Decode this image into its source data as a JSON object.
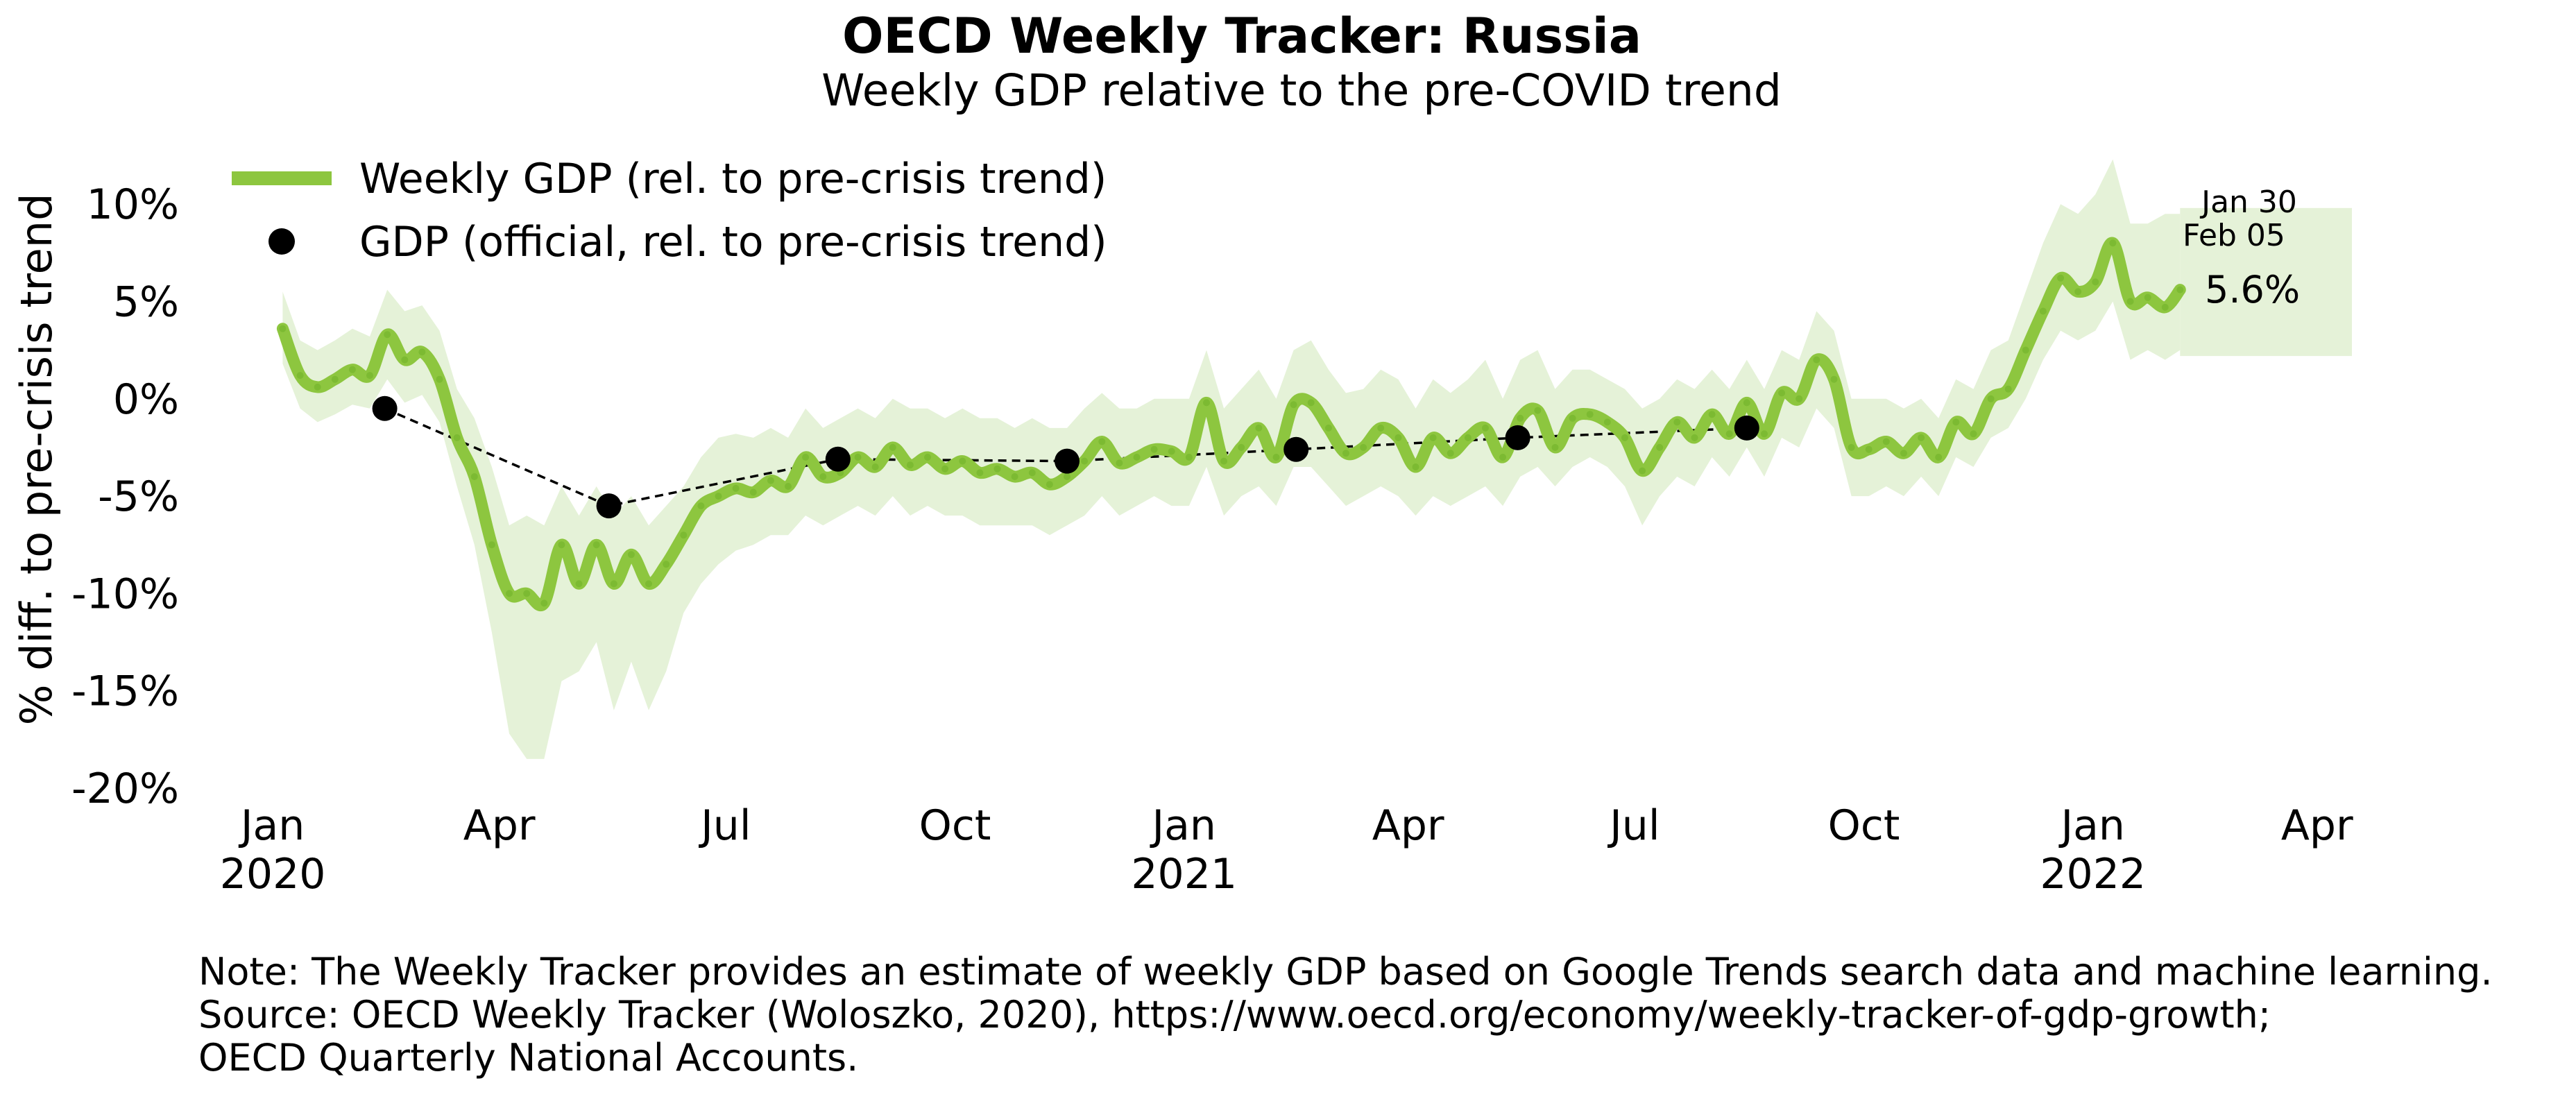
{
  "title": "OECD Weekly Tracker: Russia",
  "subtitle": "Weekly GDP relative to the pre-COVID trend",
  "notes": [
    "Note: The Weekly Tracker provides an estimate of weekly GDP based on Google Trends search data and machine learning.",
    "Source: OECD Weekly Tracker (Woloszko, 2020), https://www.oecd.org/economy/weekly-tracker-of-gdp-growth;",
    "OECD Quarterly National Accounts."
  ],
  "colors": {
    "weekly_line": "#8dc63f",
    "weekly_band": "#e5f2d8",
    "official_points": "#000000"
  },
  "chart_data": {
    "type": "line",
    "title": "OECD Weekly Tracker: Russia",
    "subtitle": "Weekly GDP relative to the pre-COVID trend",
    "ylabel": "% diff. to pre-crisis trend",
    "xlabel": "",
    "ylim": [
      -20,
      12.5
    ],
    "yticks": [
      10,
      5,
      0,
      -5,
      -10,
      -15,
      -20
    ],
    "ytick_labels": [
      "10%",
      "5%",
      "0%",
      "-5%",
      "-10%",
      "-15%",
      "-20%"
    ],
    "xlim": [
      "2019-12-20",
      "2022-04-15"
    ],
    "xticks": [
      {
        "date": "2020-01-01",
        "label": "Jan",
        "year": "2020"
      },
      {
        "date": "2020-04-01",
        "label": "Apr",
        "year": ""
      },
      {
        "date": "2020-07-01",
        "label": "Jul",
        "year": ""
      },
      {
        "date": "2020-10-01",
        "label": "Oct",
        "year": ""
      },
      {
        "date": "2021-01-01",
        "label": "Jan",
        "year": "2021"
      },
      {
        "date": "2021-04-01",
        "label": "Apr",
        "year": ""
      },
      {
        "date": "2021-07-01",
        "label": "Jul",
        "year": ""
      },
      {
        "date": "2021-10-01",
        "label": "Oct",
        "year": ""
      },
      {
        "date": "2022-01-01",
        "label": "Jan",
        "year": "2022"
      },
      {
        "date": "2022-04-01",
        "label": "Apr",
        "year": ""
      }
    ],
    "grid": false,
    "legend_position": "top-left",
    "series": [
      {
        "name": "Weekly GDP (rel. to pre-crisis trend)",
        "kind": "line_with_band",
        "points": [
          [
            "2020-01-05",
            3.6,
            1.8,
            5.5
          ],
          [
            "2020-01-12",
            1.2,
            -0.5,
            3.0
          ],
          [
            "2020-01-19",
            0.6,
            -1.2,
            2.5
          ],
          [
            "2020-01-26",
            1.0,
            -0.8,
            3.0
          ],
          [
            "2020-02-02",
            1.5,
            -0.3,
            3.6
          ],
          [
            "2020-02-09",
            1.2,
            -0.5,
            3.2
          ],
          [
            "2020-02-16",
            3.3,
            1.0,
            5.6
          ],
          [
            "2020-02-23",
            2.0,
            -0.2,
            4.5
          ],
          [
            "2020-03-01",
            2.4,
            0.2,
            4.8
          ],
          [
            "2020-03-08",
            1.0,
            -1.2,
            3.5
          ],
          [
            "2020-03-15",
            -2.0,
            -4.5,
            0.5
          ],
          [
            "2020-03-22",
            -4.0,
            -7.5,
            -1.0
          ],
          [
            "2020-03-29",
            -7.5,
            -12.0,
            -3.5
          ],
          [
            "2020-04-05",
            -10.0,
            -17.2,
            -6.5
          ],
          [
            "2020-04-12",
            -10.0,
            -18.5,
            -6.0
          ],
          [
            "2020-04-19",
            -10.5,
            -18.5,
            -6.5
          ],
          [
            "2020-04-26",
            -7.5,
            -14.5,
            -4.5
          ],
          [
            "2020-05-03",
            -9.5,
            -14.0,
            -6.0
          ],
          [
            "2020-05-10",
            -7.5,
            -12.5,
            -4.5
          ],
          [
            "2020-05-17",
            -9.5,
            -16.0,
            -6.0
          ],
          [
            "2020-05-24",
            -8.0,
            -13.5,
            -5.0
          ],
          [
            "2020-05-31",
            -9.5,
            -16.0,
            -6.5
          ],
          [
            "2020-06-07",
            -8.5,
            -14.0,
            -5.5
          ],
          [
            "2020-06-14",
            -7.0,
            -11.0,
            -4.5
          ],
          [
            "2020-06-21",
            -5.5,
            -9.5,
            -3.0
          ],
          [
            "2020-06-28",
            -5.0,
            -8.5,
            -2.0
          ],
          [
            "2020-07-05",
            -4.6,
            -7.8,
            -1.8
          ],
          [
            "2020-07-12",
            -4.8,
            -7.5,
            -2.0
          ],
          [
            "2020-07-19",
            -4.2,
            -7.0,
            -1.5
          ],
          [
            "2020-07-26",
            -4.5,
            -7.0,
            -2.0
          ],
          [
            "2020-08-02",
            -3.0,
            -6.0,
            -0.5
          ],
          [
            "2020-08-09",
            -4.0,
            -6.5,
            -1.5
          ],
          [
            "2020-08-16",
            -3.8,
            -6.0,
            -1.0
          ],
          [
            "2020-08-23",
            -3.0,
            -5.5,
            -0.5
          ],
          [
            "2020-08-30",
            -3.5,
            -6.0,
            -1.0
          ],
          [
            "2020-09-06",
            -2.5,
            -5.0,
            0.0
          ],
          [
            "2020-09-13",
            -3.4,
            -6.0,
            -0.5
          ],
          [
            "2020-09-20",
            -3.0,
            -5.5,
            -0.5
          ],
          [
            "2020-09-27",
            -3.6,
            -6.0,
            -1.0
          ],
          [
            "2020-10-04",
            -3.2,
            -6.0,
            -0.5
          ],
          [
            "2020-10-11",
            -3.8,
            -6.5,
            -1.0
          ],
          [
            "2020-10-18",
            -3.6,
            -6.5,
            -1.0
          ],
          [
            "2020-10-25",
            -4.0,
            -6.5,
            -1.5
          ],
          [
            "2020-11-01",
            -3.8,
            -6.5,
            -1.0
          ],
          [
            "2020-11-08",
            -4.4,
            -7.0,
            -1.5
          ],
          [
            "2020-11-15",
            -4.0,
            -6.5,
            -1.5
          ],
          [
            "2020-11-22",
            -3.2,
            -6.0,
            -0.5
          ],
          [
            "2020-11-29",
            -2.2,
            -5.0,
            0.3
          ],
          [
            "2020-12-06",
            -3.3,
            -6.0,
            -0.5
          ],
          [
            "2020-12-13",
            -3.0,
            -5.5,
            -0.5
          ],
          [
            "2020-12-20",
            -2.6,
            -5.0,
            0.0
          ],
          [
            "2020-12-27",
            -2.7,
            -5.5,
            0.0
          ],
          [
            "2021-01-03",
            -3.0,
            -5.5,
            0.0
          ],
          [
            "2021-01-10",
            -0.2,
            -3.5,
            2.5
          ],
          [
            "2021-01-17",
            -3.2,
            -6.0,
            -0.5
          ],
          [
            "2021-01-24",
            -2.5,
            -5.0,
            0.5
          ],
          [
            "2021-01-31",
            -1.5,
            -4.5,
            1.5
          ],
          [
            "2021-02-07",
            -3.0,
            -5.5,
            0.0
          ],
          [
            "2021-02-14",
            -0.3,
            -3.5,
            2.5
          ],
          [
            "2021-02-21",
            -0.2,
            -3.5,
            3.0
          ],
          [
            "2021-02-28",
            -1.5,
            -4.5,
            1.5
          ],
          [
            "2021-03-07",
            -2.8,
            -5.5,
            0.3
          ],
          [
            "2021-03-14",
            -2.5,
            -5.0,
            0.5
          ],
          [
            "2021-03-21",
            -1.5,
            -4.5,
            1.5
          ],
          [
            "2021-03-28",
            -2.0,
            -5.0,
            1.0
          ],
          [
            "2021-04-04",
            -3.5,
            -6.0,
            -0.5
          ],
          [
            "2021-04-11",
            -2.0,
            -5.0,
            1.0
          ],
          [
            "2021-04-18",
            -2.8,
            -5.5,
            0.3
          ],
          [
            "2021-04-25",
            -2.0,
            -5.0,
            1.0
          ],
          [
            "2021-05-02",
            -1.5,
            -4.5,
            2.0
          ],
          [
            "2021-05-09",
            -3.0,
            -5.5,
            0.0
          ],
          [
            "2021-05-16",
            -1.0,
            -4.0,
            2.0
          ],
          [
            "2021-05-23",
            -0.6,
            -3.5,
            2.5
          ],
          [
            "2021-05-30",
            -2.5,
            -4.5,
            0.5
          ],
          [
            "2021-06-06",
            -1.0,
            -3.5,
            1.5
          ],
          [
            "2021-06-13",
            -0.8,
            -3.0,
            1.5
          ],
          [
            "2021-06-20",
            -1.2,
            -3.5,
            1.0
          ],
          [
            "2021-06-27",
            -2.0,
            -4.5,
            0.5
          ],
          [
            "2021-07-04",
            -3.7,
            -6.5,
            -0.5
          ],
          [
            "2021-07-11",
            -2.5,
            -5.0,
            0.0
          ],
          [
            "2021-07-18",
            -1.2,
            -4.0,
            1.0
          ],
          [
            "2021-07-25",
            -2.0,
            -4.5,
            0.5
          ],
          [
            "2021-08-01",
            -0.8,
            -3.0,
            1.5
          ],
          [
            "2021-08-08",
            -1.8,
            -4.0,
            0.5
          ],
          [
            "2021-08-15",
            -0.2,
            -2.5,
            2.0
          ],
          [
            "2021-08-22",
            -1.8,
            -4.0,
            0.5
          ],
          [
            "2021-08-29",
            0.3,
            -2.0,
            2.5
          ],
          [
            "2021-09-05",
            0.0,
            -2.5,
            2.0
          ],
          [
            "2021-09-12",
            2.0,
            -0.5,
            4.5
          ],
          [
            "2021-09-19",
            1.0,
            -1.5,
            3.5
          ],
          [
            "2021-09-26",
            -2.5,
            -5.0,
            0.0
          ],
          [
            "2021-10-03",
            -2.6,
            -5.0,
            0.0
          ],
          [
            "2021-10-10",
            -2.2,
            -4.5,
            0.0
          ],
          [
            "2021-10-17",
            -2.8,
            -5.0,
            -0.5
          ],
          [
            "2021-10-24",
            -2.0,
            -4.0,
            0.0
          ],
          [
            "2021-10-31",
            -3.0,
            -5.0,
            -1.0
          ],
          [
            "2021-11-07",
            -1.2,
            -3.0,
            1.0
          ],
          [
            "2021-11-14",
            -1.8,
            -3.5,
            0.5
          ],
          [
            "2021-11-21",
            0.0,
            -2.0,
            2.5
          ],
          [
            "2021-11-28",
            0.5,
            -1.5,
            3.0
          ],
          [
            "2021-12-05",
            2.5,
            0.0,
            5.5
          ],
          [
            "2021-12-12",
            4.5,
            2.0,
            8.0
          ],
          [
            "2021-12-19",
            6.2,
            3.5,
            10.0
          ],
          [
            "2021-12-26",
            5.5,
            3.0,
            9.5
          ],
          [
            "2022-01-02",
            6.0,
            3.5,
            10.5
          ],
          [
            "2022-01-09",
            8.0,
            5.0,
            12.3
          ],
          [
            "2022-01-16",
            5.0,
            2.0,
            9.0
          ],
          [
            "2022-01-23",
            5.2,
            2.5,
            9.0
          ],
          [
            "2022-01-30",
            4.7,
            2.0,
            9.5
          ],
          [
            "2022-02-05",
            5.6,
            2.5,
            9.5
          ]
        ],
        "forecast_band": {
          "x": [
            "2022-02-05",
            "2022-04-15"
          ],
          "low": 2.2,
          "high": 9.8
        }
      },
      {
        "name": "GDP (official, rel. to pre-crisis trend)",
        "kind": "points_dashed",
        "points": [
          [
            "2020-02-15",
            -0.5
          ],
          [
            "2020-05-15",
            -5.5
          ],
          [
            "2020-08-15",
            -3.1
          ],
          [
            "2020-11-15",
            -3.2
          ],
          [
            "2021-02-15",
            -2.6
          ],
          [
            "2021-05-15",
            -2.0
          ],
          [
            "2021-08-15",
            -1.5
          ]
        ]
      }
    ],
    "annotations": {
      "date_range_line1": "Jan 30",
      "date_range_line2": "Feb 05",
      "last_value": "5.6%"
    }
  }
}
